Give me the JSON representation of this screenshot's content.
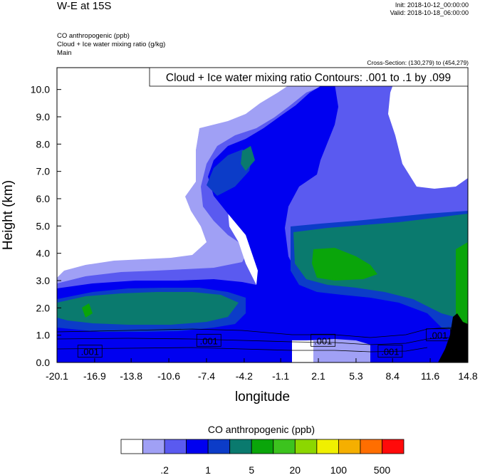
{
  "header": {
    "title": "W-E at 15S",
    "init": "Init: 2018-10-12_00:00:00",
    "valid": "Valid: 2018-10-18_06:00:00",
    "field1": "CO anthropogenic   (ppb)",
    "field2": "Cloud + Ice water mixing ratio   (g/kg)",
    "field3": "Main",
    "cross_section": "Cross-Section: (130,279) to (454,279)",
    "contour_info": "Cloud + Ice water mixing ratio Contours: .001 to .1 by .099"
  },
  "chart_data": {
    "type": "heatmap",
    "xlabel": "longitude",
    "ylabel": "Height (km)",
    "x_ticks": [
      "-20.1",
      "-16.9",
      "-13.8",
      "-10.6",
      "-7.4",
      "-4.2",
      "-1.1",
      "2.1",
      "5.3",
      "8.4",
      "11.6",
      "14.8"
    ],
    "y_ticks": [
      "0.0",
      "1.0",
      "2.0",
      "3.0",
      "4.0",
      "5.0",
      "6.0",
      "7.0",
      "8.0",
      "9.0",
      "10.0"
    ],
    "xlim": [
      -20.1,
      14.8
    ],
    "ylim": [
      0,
      10.8
    ],
    "contour_labels": [
      {
        "text": ".001",
        "lon": -17.3,
        "height": 0.4
      },
      {
        "text": ".001",
        "lon": -7.2,
        "height": 0.8
      },
      {
        "text": ".001",
        "lon": 2.5,
        "height": 0.8
      },
      {
        "text": ".001",
        "lon": 8.2,
        "height": 0.4
      },
      {
        "text": ".001",
        "lon": 12.3,
        "height": 1.0
      }
    ],
    "colorbar": {
      "title": "CO anthropogenic  (ppb)",
      "colors": [
        "#ffffff",
        "#a0a0f5",
        "#5a5af0",
        "#0000f0",
        "#0c3cc8",
        "#0a7a6e",
        "#0aa50a",
        "#3cc31e",
        "#8cd700",
        "#f0f000",
        "#f5af00",
        "#ff6e00",
        "#ff0a0a"
      ],
      "tick_labels": [
        ".2",
        "1",
        "5",
        "20",
        "100",
        "500"
      ]
    }
  }
}
